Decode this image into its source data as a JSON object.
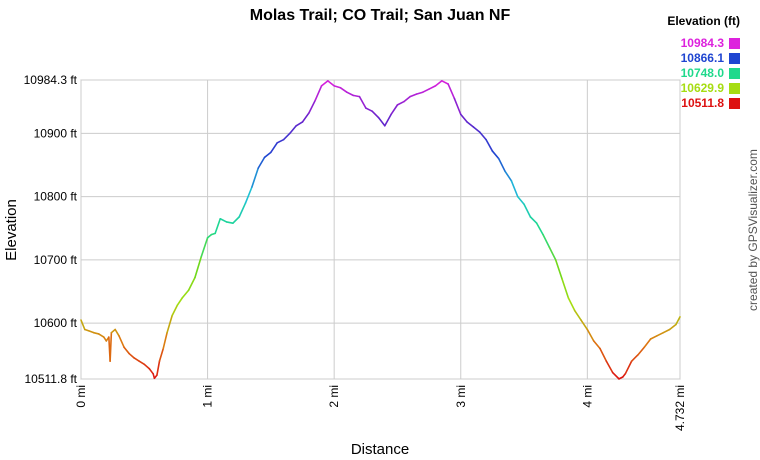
{
  "chart_data": {
    "type": "line",
    "title": "Molas Trail; CO Trail; San Juan NF",
    "xlabel": "Distance",
    "ylabel": "Elevation",
    "xlim": [
      0,
      4.732
    ],
    "ylim": [
      10511.8,
      10984.3
    ],
    "grid": true,
    "x_ticks": [
      {
        "value": 0,
        "label": "0 mi"
      },
      {
        "value": 1,
        "label": "1 mi"
      },
      {
        "value": 2,
        "label": "2 mi"
      },
      {
        "value": 3,
        "label": "3 mi"
      },
      {
        "value": 4,
        "label": "4 mi"
      },
      {
        "value": 4.732,
        "label": "4.732 mi"
      }
    ],
    "y_ticks": [
      {
        "value": 10511.8,
        "label": "10511.8 ft"
      },
      {
        "value": 10600,
        "label": "10600 ft"
      },
      {
        "value": 10700,
        "label": "10700 ft"
      },
      {
        "value": 10800,
        "label": "10800 ft"
      },
      {
        "value": 10900,
        "label": "10900 ft"
      },
      {
        "value": 10984.3,
        "label": "10984.3 ft"
      }
    ],
    "legend": {
      "title": "Elevation (ft)",
      "placement": "top-right",
      "entries": [
        {
          "label": "10984.3",
          "value": 10984.3,
          "color": "#dd22dd"
        },
        {
          "label": "10866.1",
          "value": 10866.1,
          "color": "#1f45d1"
        },
        {
          "label": "10748.0",
          "value": 10748.0,
          "color": "#1fd98c"
        },
        {
          "label": "10629.9",
          "value": 10629.9,
          "color": "#a6dd12"
        },
        {
          "label": "10511.8",
          "value": 10511.8,
          "color": "#dd1111"
        }
      ]
    },
    "series": [
      {
        "x": [
          0,
          0.03,
          0.06,
          0.1,
          0.14,
          0.18,
          0.2,
          0.22,
          0.23,
          0.24,
          0.27,
          0.3,
          0.34,
          0.38,
          0.42,
          0.46,
          0.5,
          0.54,
          0.57,
          0.58,
          0.6,
          0.62,
          0.65,
          0.68,
          0.72,
          0.76,
          0.8,
          0.85,
          0.9,
          0.95,
          1.0,
          1.03,
          1.06,
          1.1,
          1.15,
          1.2,
          1.25,
          1.3,
          1.35,
          1.4,
          1.45,
          1.5,
          1.55,
          1.6,
          1.65,
          1.7,
          1.75,
          1.8,
          1.85,
          1.9,
          1.95,
          2.0,
          2.05,
          2.1,
          2.15,
          2.2,
          2.25,
          2.3,
          2.35,
          2.4,
          2.45,
          2.5,
          2.55,
          2.6,
          2.65,
          2.7,
          2.75,
          2.8,
          2.85,
          2.9,
          2.95,
          3.0,
          3.05,
          3.1,
          3.15,
          3.2,
          3.25,
          3.3,
          3.35,
          3.4,
          3.45,
          3.5,
          3.55,
          3.6,
          3.65,
          3.7,
          3.75,
          3.8,
          3.85,
          3.9,
          3.95,
          4.0,
          4.05,
          4.1,
          4.15,
          4.2,
          4.25,
          4.28,
          4.3,
          4.35,
          4.4,
          4.45,
          4.5,
          4.55,
          4.6,
          4.65,
          4.7,
          4.732
        ],
        "y": [
          10605,
          10590,
          10588,
          10585,
          10583,
          10578,
          10572,
          10578,
          10540,
          10585,
          10590,
          10580,
          10562,
          10552,
          10545,
          10540,
          10535,
          10528,
          10520,
          10513,
          10518,
          10540,
          10560,
          10585,
          10612,
          10628,
          10640,
          10652,
          10672,
          10705,
          10735,
          10740,
          10742,
          10765,
          10760,
          10758,
          10768,
          10790,
          10815,
          10845,
          10862,
          10870,
          10885,
          10890,
          10900,
          10912,
          10918,
          10932,
          10952,
          10975,
          10983,
          10975,
          10972,
          10965,
          10960,
          10958,
          10940,
          10935,
          10925,
          10912,
          10930,
          10945,
          10950,
          10958,
          10962,
          10965,
          10970,
          10975,
          10983,
          10978,
          10955,
          10930,
          10918,
          10910,
          10902,
          10890,
          10872,
          10860,
          10840,
          10825,
          10800,
          10788,
          10768,
          10758,
          10740,
          10720,
          10700,
          10670,
          10640,
          10620,
          10605,
          10590,
          10572,
          10560,
          10540,
          10522,
          10512,
          10515,
          10520,
          10540,
          10550,
          10562,
          10575,
          10580,
          10585,
          10590,
          10598,
          10610
        ]
      }
    ]
  },
  "credit": "created by GPSVisualizer.com"
}
